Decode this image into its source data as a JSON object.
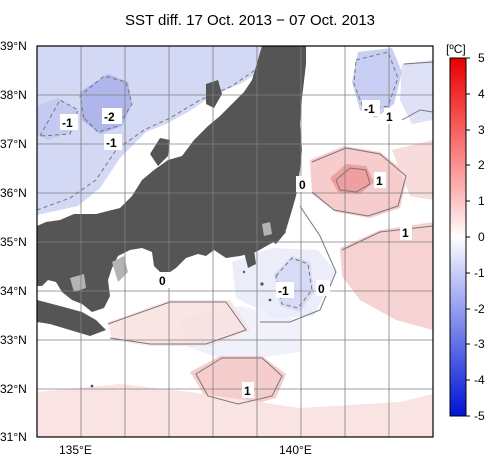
{
  "title": "SST diff. 17 Oct. 2013 − 07 Oct. 2013",
  "map": {
    "lat_range": [
      31,
      39
    ],
    "lon_range": [
      134.5,
      143.5
    ],
    "lat_labels": [
      "39°N",
      "38°N",
      "37°N",
      "36°N",
      "35°N",
      "34°N",
      "33°N",
      "32°N",
      "31°N"
    ],
    "lon_labels": [
      "135°E",
      "140°E"
    ],
    "contour_labels": [
      "-1",
      "-2",
      "-1",
      "0",
      "1",
      "-1",
      "1",
      "1",
      "0",
      "-1",
      "0",
      "1"
    ],
    "colors": {
      "land": "#555555",
      "lake": "#b4b4b4",
      "water_neutral": "#ffffff",
      "warm": "#f4c7c7",
      "cool": "#cdd3f2"
    }
  },
  "colorbar": {
    "unit": "[ºC]",
    "ticks": [
      "5",
      "4",
      "3",
      "2",
      "1",
      "0",
      "-1",
      "-2",
      "-3",
      "-4",
      "-5"
    ],
    "colors": [
      "#e60000",
      "#f22f2f",
      "#f76060",
      "#fb9191",
      "#fdc4c4",
      "#ffffff",
      "#c8cef8",
      "#959ff0",
      "#6170e6",
      "#2f41dd",
      "#0012d4"
    ]
  }
}
